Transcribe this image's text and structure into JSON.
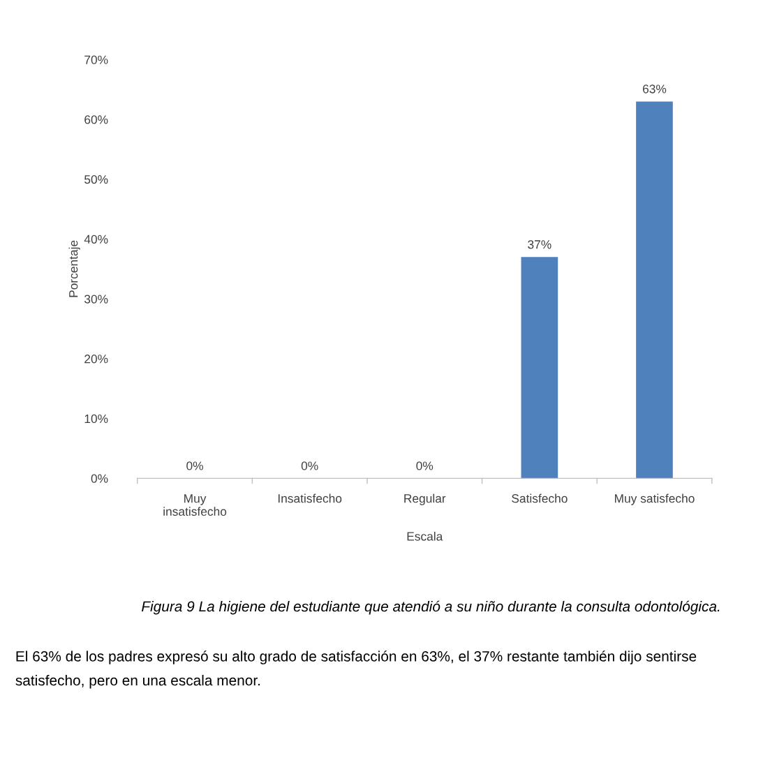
{
  "chart_data": {
    "type": "bar",
    "xlabel": "Escala",
    "ylabel": "Porcentaje",
    "categories": [
      "Muy\ninsatisfecho",
      "Insatisfecho",
      "Regular",
      "Satisfecho",
      "Muy satisfecho"
    ],
    "values": [
      0,
      0,
      0,
      37,
      63
    ],
    "color": "#4f81bd",
    "value_labels": [
      "0%",
      "0%",
      "0%",
      "37%",
      "63%"
    ],
    "ylim": [
      0,
      70
    ],
    "yticks": [
      {
        "value": 0,
        "label": "0%"
      },
      {
        "value": 10,
        "label": "10%"
      },
      {
        "value": 20,
        "label": "20%"
      },
      {
        "value": 30,
        "label": "30%"
      },
      {
        "value": 40,
        "label": "40%"
      },
      {
        "value": 50,
        "label": "50%"
      },
      {
        "value": 60,
        "label": "60%"
      },
      {
        "value": 70,
        "label": "70%"
      }
    ],
    "grid": false,
    "legend": false,
    "annotations": [
      "Figura 9 La higiene del estudiante que atendió a su niño durante la consulta odontológica.",
      "El 63% de los padres expresó su alto grado de satisfacción en 63%, el 37% restante también dijo sentirse satisfecho, pero en una escala menor."
    ]
  }
}
